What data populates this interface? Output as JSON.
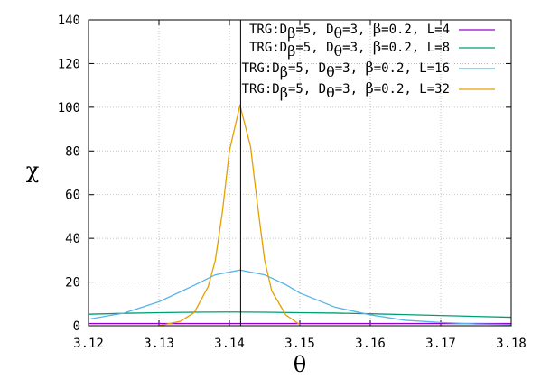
{
  "chart_data": {
    "type": "line",
    "xlabel": "θ",
    "ylabel": "χ",
    "xlim": [
      3.12,
      3.18
    ],
    "ylim": [
      0,
      140
    ],
    "xticks": [
      "3.12",
      "3.13",
      "3.14",
      "3.15",
      "3.16",
      "3.17",
      "3.18"
    ],
    "yticks": [
      "0",
      "20",
      "40",
      "60",
      "80",
      "100",
      "120",
      "140"
    ],
    "grid": true,
    "legend_position": "top-right",
    "vertical_line_x": 3.14159,
    "series": [
      {
        "name": "TRG:Dβ=5, Dθ=3, β=0.2, L=4",
        "color": "#9400d3",
        "x": [
          3.12,
          3.13,
          3.14,
          3.15,
          3.16,
          3.17,
          3.18
        ],
        "y": [
          1.0,
          1.0,
          1.0,
          1.0,
          1.0,
          1.0,
          1.0
        ]
      },
      {
        "name": "TRG:Dβ=5, Dθ=3, β=0.2, L=8",
        "color": "#009e73",
        "x": [
          3.12,
          3.125,
          3.13,
          3.135,
          3.14,
          3.145,
          3.15,
          3.155,
          3.16,
          3.165,
          3.17,
          3.175,
          3.18
        ],
        "y": [
          5.3,
          5.7,
          6.0,
          6.2,
          6.3,
          6.2,
          6.0,
          5.8,
          5.5,
          5.1,
          4.7,
          4.3,
          3.9
        ]
      },
      {
        "name": "TRG:Dβ=5, Dθ=3, β=0.2, L=16",
        "color": "#56b4e9",
        "x": [
          3.12,
          3.125,
          3.13,
          3.135,
          3.138,
          3.1415,
          3.145,
          3.148,
          3.15,
          3.155,
          3.16,
          3.165,
          3.17,
          3.175,
          3.18
        ],
        "y": [
          3.0,
          5.8,
          11.0,
          18.5,
          23.3,
          25.5,
          23.3,
          18.8,
          15.0,
          8.5,
          5.0,
          2.5,
          1.5,
          0.8,
          0.5
        ]
      },
      {
        "name": "TRG:Dβ=5, Dθ=3, β=0.2, L=32",
        "color": "#e69f00",
        "x": [
          3.13,
          3.133,
          3.135,
          3.137,
          3.138,
          3.139,
          3.14,
          3.1415,
          3.143,
          3.144,
          3.145,
          3.146,
          3.148,
          3.15
        ],
        "y": [
          0.0,
          2.0,
          6.0,
          18.0,
          30.0,
          52.0,
          80.0,
          101.0,
          82.0,
          55.0,
          30.0,
          16.0,
          5.0,
          0.5
        ]
      }
    ]
  },
  "legend": [
    {
      "prefix": "TRG:D",
      "sub1": "β",
      "mid1": "=5, D",
      "sub2": "θ",
      "mid2": "=3, ",
      "beta": "β",
      "tail": "=0.2, L=4"
    },
    {
      "prefix": "TRG:D",
      "sub1": "β",
      "mid1": "=5, D",
      "sub2": "θ",
      "mid2": "=3, ",
      "beta": "β",
      "tail": "=0.2, L=8"
    },
    {
      "prefix": "TRG:D",
      "sub1": "β",
      "mid1": "=5, D",
      "sub2": "θ",
      "mid2": "=3, ",
      "beta": "β",
      "tail": "=0.2, L=16"
    },
    {
      "prefix": "TRG:D",
      "sub1": "β",
      "mid1": "=5, D",
      "sub2": "θ",
      "mid2": "=3, ",
      "beta": "β",
      "tail": "=0.2, L=32"
    }
  ]
}
